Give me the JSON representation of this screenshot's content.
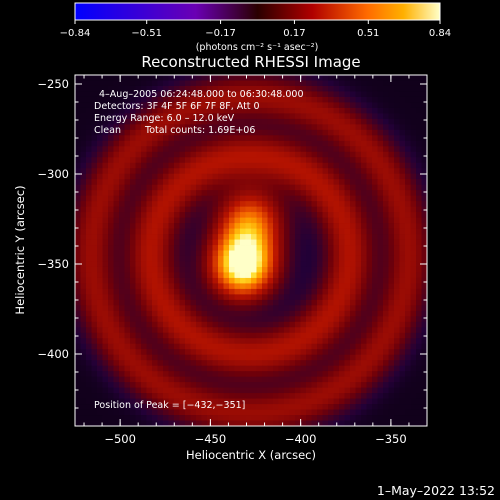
{
  "chart_data": {
    "type": "heatmap",
    "title": "Reconstructed RHESSI Image",
    "xlabel": "Heliocentric X (arcsec)",
    "ylabel": "Heliocentric Y (arcsec)",
    "xlim": [
      -525,
      -330
    ],
    "ylim": [
      -440,
      -245
    ],
    "x_ticks": [
      -500,
      -450,
      -400,
      -350
    ],
    "x_tick_labels": [
      "−500",
      "−450",
      "−400",
      "−350"
    ],
    "y_ticks": [
      -250,
      -300,
      -350,
      -400
    ],
    "y_tick_labels": [
      "−250",
      "−300",
      "−350",
      "−400"
    ],
    "colorbar": {
      "min": -0.84,
      "max": 0.84,
      "ticks": [
        -0.84,
        -0.51,
        -0.17,
        0.17,
        0.51,
        0.84
      ],
      "tick_labels": [
        "−0.84",
        "−0.51",
        "−0.17",
        "0.17",
        "0.51",
        "0.84"
      ],
      "units": "(photons cm⁻² s⁻¹ asec⁻²)"
    },
    "annotations": [
      "4–Aug–2005 06:24:48.000 to 06:30:48.000",
      "Detectors: 3F 4F 5F 6F 7F 8F, Att 0",
      "Energy Range: 6.0 – 12.0 keV",
      "Clean",
      "Total counts: 1.69E+06"
    ],
    "peak_label": "Position of Peak = [−432,−351]",
    "peak": [
      -432,
      -351
    ],
    "sources": [
      {
        "x": -432,
        "y": -351,
        "amplitude": 0.84,
        "width": 13
      },
      {
        "x": -428,
        "y": -326,
        "amplitude": 0.5,
        "width": 13
      }
    ],
    "rings": [
      {
        "cx": -428,
        "cy": -345,
        "radius": 55,
        "width": 14,
        "amplitude": 0.35
      },
      {
        "cx": -428,
        "cy": -345,
        "radius": 88,
        "width": 13,
        "amplitude": 0.3
      }
    ]
  },
  "footer": {
    "timestamp": "1–May–2022 13:52"
  }
}
